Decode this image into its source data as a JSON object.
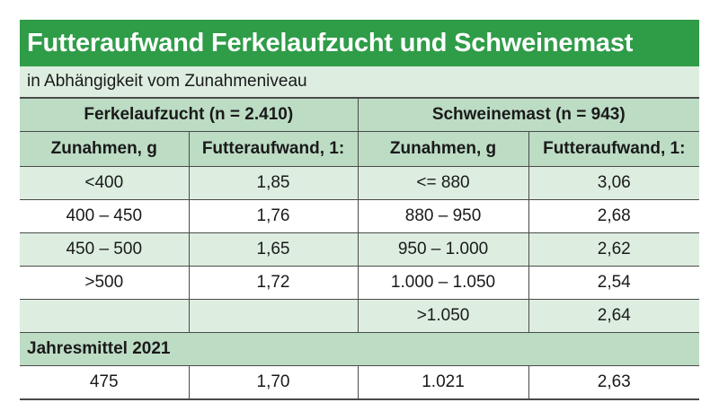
{
  "title": "Futteraufwand Ferkelaufzucht und Schweinemast",
  "subtitle": "in Abhängigkeit vom Zunahmeniveau",
  "groups": {
    "left": "Ferkelaufzucht (n = 2.410)",
    "right": "Schweinemast (n = 943)"
  },
  "columns": [
    "Zunahmen, g",
    "Futteraufwand, 1:",
    "Zunahmen, g",
    "Futteraufwand, 1:"
  ],
  "rows": [
    [
      "<400",
      "1,85",
      "<= 880",
      "3,06"
    ],
    [
      "400 – 450",
      "1,76",
      "880 – 950",
      "2,68"
    ],
    [
      "450 – 500",
      "1,65",
      "950 – 1.000",
      "2,62"
    ],
    [
      ">500",
      "1,72",
      "1.000 – 1.050",
      "2,54"
    ],
    [
      "",
      "",
      ">1.050",
      "2,64"
    ]
  ],
  "summary": {
    "label": "Jahresmittel 2021",
    "values": [
      "475",
      "1,70",
      "1.021",
      "2,63"
    ]
  },
  "colors": {
    "title_bg": "#2f9c48",
    "header_bg": "#bcdcc4",
    "alt_row_bg": "#ddeee0"
  }
}
